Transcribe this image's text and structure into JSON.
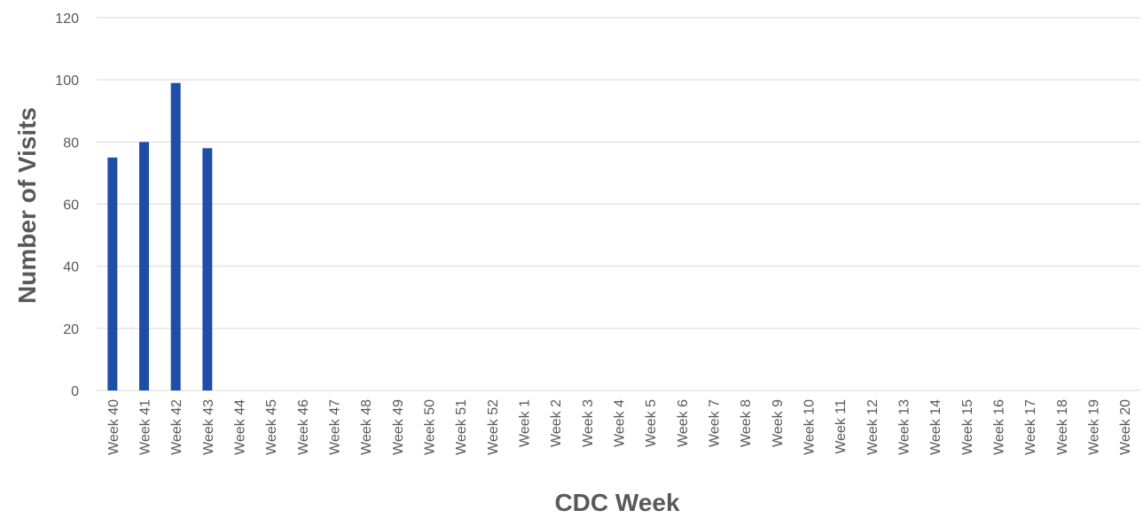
{
  "chart_data": {
    "type": "bar",
    "title": "",
    "xlabel": "CDC Week",
    "ylabel": "Number of Visits",
    "ylim": [
      0,
      120
    ],
    "yticks": [
      0,
      20,
      40,
      60,
      80,
      100,
      120
    ],
    "grid": true,
    "categories": [
      "Week 40",
      "Week 41",
      "Week 42",
      "Week 43",
      "Week 44",
      "Week 45",
      "Week 46",
      "Week 47",
      "Week 48",
      "Week 49",
      "Week 50",
      "Week 51",
      "Week 52",
      "Week 1",
      "Week 2",
      "Week 3",
      "Week 4",
      "Week 5",
      "Week 6",
      "Week 7",
      "Week 8",
      "Week 9",
      "Week 10",
      "Week 11",
      "Week 12",
      "Week 13",
      "Week 14",
      "Week 15",
      "Week 16",
      "Week 17",
      "Week 18",
      "Week 19",
      "Week 20"
    ],
    "values": [
      75,
      80,
      99,
      78,
      null,
      null,
      null,
      null,
      null,
      null,
      null,
      null,
      null,
      null,
      null,
      null,
      null,
      null,
      null,
      null,
      null,
      null,
      null,
      null,
      null,
      null,
      null,
      null,
      null,
      null,
      null,
      null,
      null
    ],
    "bar_color": "#1f4ea8"
  }
}
